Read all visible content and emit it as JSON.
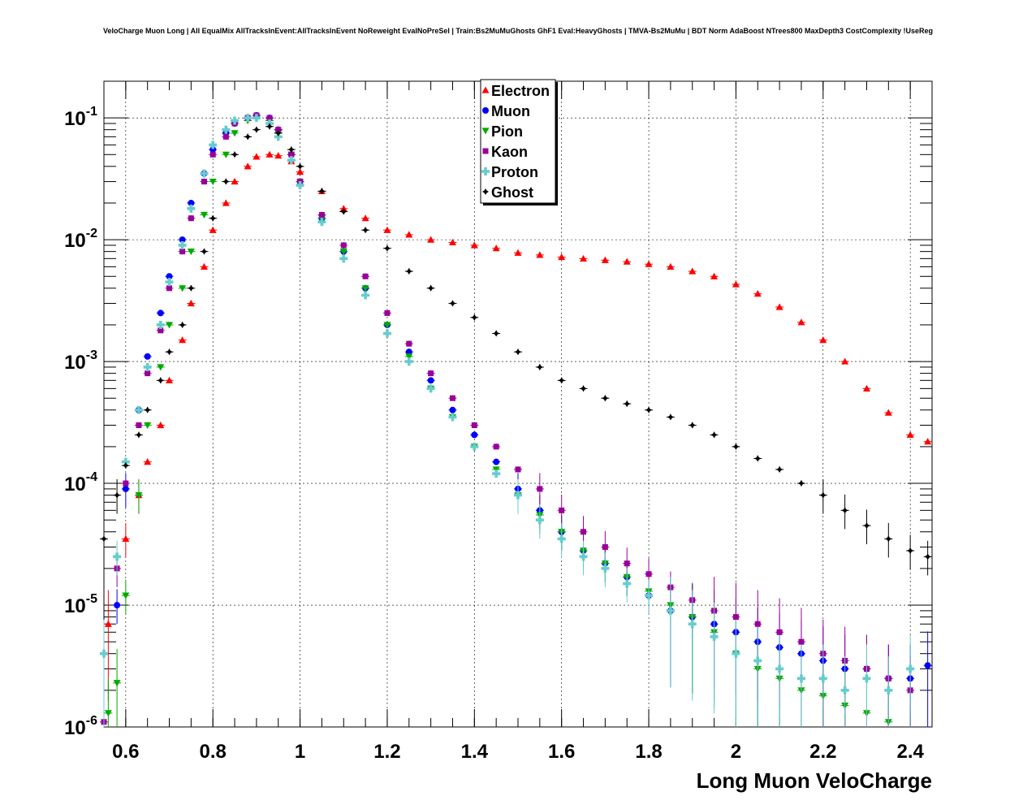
{
  "chart_data": {
    "type": "scatter",
    "title": "VeloCharge Muon Long | All EqualMix AllTracksInEvent:AllTracksInEvent NoReweight EvalNoPreSel | Train:Bs2MuMuGhosts GhF1 Eval:HeavyGhosts | TMVA-Bs2MuMu | BDT Norm AdaBoost NTrees800 MaxDepth3 CostComplexity !UseReg",
    "xlabel": "Long Muon VeloCharge",
    "ylabel": "",
    "xlim": [
      0.55,
      2.45
    ],
    "ylim": [
      1e-06,
      0.2
    ],
    "yscale": "log",
    "grid": true,
    "legend_position": "top-center",
    "x_ticks": [
      "0.6",
      "0.8",
      "1",
      "1.2",
      "1.4",
      "1.6",
      "1.8",
      "2",
      "2.2",
      "2.4"
    ],
    "y_ticks": [
      {
        "base": "10",
        "exp": "-1"
      },
      {
        "base": "10",
        "exp": "-2"
      },
      {
        "base": "10",
        "exp": "-3"
      },
      {
        "base": "10",
        "exp": "-4"
      },
      {
        "base": "10",
        "exp": "-5"
      },
      {
        "base": "10",
        "exp": "-6"
      }
    ],
    "series": [
      {
        "name": "Electron",
        "color": "#ff0000",
        "marker": "triangle-up",
        "x": [
          0.56,
          0.6,
          0.63,
          0.65,
          0.68,
          0.7,
          0.73,
          0.75,
          0.78,
          0.8,
          0.83,
          0.85,
          0.88,
          0.9,
          0.93,
          0.95,
          0.98,
          1.0,
          1.05,
          1.1,
          1.15,
          1.2,
          1.25,
          1.3,
          1.35,
          1.4,
          1.45,
          1.5,
          1.55,
          1.6,
          1.65,
          1.7,
          1.75,
          1.8,
          1.85,
          1.9,
          1.95,
          2.0,
          2.05,
          2.1,
          2.15,
          2.2,
          2.25,
          2.3,
          2.35,
          2.4,
          2.44
        ],
        "y": [
          7e-06,
          3.5e-05,
          8e-05,
          0.00015,
          0.0003,
          0.0007,
          0.0015,
          0.003,
          0.006,
          0.012,
          0.02,
          0.03,
          0.04,
          0.048,
          0.05,
          0.049,
          0.044,
          0.036,
          0.025,
          0.018,
          0.015,
          0.012,
          0.011,
          0.01,
          0.0095,
          0.009,
          0.0085,
          0.0078,
          0.0075,
          0.0072,
          0.007,
          0.0068,
          0.0066,
          0.0063,
          0.006,
          0.0055,
          0.005,
          0.0043,
          0.0036,
          0.0028,
          0.0021,
          0.0015,
          0.001,
          0.0006,
          0.00038,
          0.00025,
          0.00022
        ]
      },
      {
        "name": "Muon",
        "color": "#0000ff",
        "marker": "circle",
        "x": [
          0.58,
          0.6,
          0.63,
          0.65,
          0.68,
          0.7,
          0.73,
          0.75,
          0.78,
          0.8,
          0.83,
          0.85,
          0.88,
          0.9,
          0.93,
          0.95,
          0.98,
          1.0,
          1.05,
          1.1,
          1.15,
          1.2,
          1.25,
          1.3,
          1.35,
          1.4,
          1.45,
          1.5,
          1.55,
          1.6,
          1.65,
          1.7,
          1.75,
          1.8,
          1.85,
          1.9,
          1.95,
          2.0,
          2.05,
          2.1,
          2.15,
          2.2,
          2.25,
          2.3,
          2.35,
          2.4,
          2.44
        ],
        "y": [
          1e-05,
          9e-05,
          0.0004,
          0.0011,
          0.0025,
          0.005,
          0.01,
          0.02,
          0.035,
          0.055,
          0.075,
          0.09,
          0.1,
          0.105,
          0.1,
          0.08,
          0.05,
          0.03,
          0.015,
          0.008,
          0.004,
          0.002,
          0.0012,
          0.0007,
          0.0004,
          0.00025,
          0.00015,
          9e-05,
          6e-05,
          4e-05,
          2.8e-05,
          2.2e-05,
          1.7e-05,
          1.2e-05,
          9e-06,
          8e-06,
          7e-06,
          6e-06,
          5e-06,
          4.5e-06,
          4e-06,
          3.5e-06,
          3e-06,
          3e-06,
          2.5e-06,
          2.5e-06,
          3.2e-06
        ]
      },
      {
        "name": "Pion",
        "color": "#00aa00",
        "marker": "triangle-down",
        "x": [
          0.56,
          0.58,
          0.6,
          0.63,
          0.65,
          0.68,
          0.7,
          0.73,
          0.75,
          0.78,
          0.8,
          0.83,
          0.85,
          0.88,
          0.9,
          0.93,
          0.95,
          0.98,
          1.0,
          1.05,
          1.1,
          1.15,
          1.2,
          1.25,
          1.3,
          1.35,
          1.4,
          1.45,
          1.5,
          1.55,
          1.6,
          1.65,
          1.7,
          1.75,
          1.8,
          1.85,
          1.9,
          1.95,
          2.0,
          2.05,
          2.1,
          2.15,
          2.2,
          2.25,
          2.3,
          2.35
        ],
        "y": [
          1.3e-06,
          2.3e-06,
          1.2e-05,
          8e-05,
          0.0003,
          0.0009,
          0.002,
          0.004,
          0.008,
          0.016,
          0.03,
          0.05,
          0.075,
          0.095,
          0.1,
          0.095,
          0.075,
          0.05,
          0.03,
          0.015,
          0.008,
          0.004,
          0.002,
          0.0011,
          0.0006,
          0.00035,
          0.0002,
          0.00013,
          8e-05,
          5.5e-05,
          4e-05,
          2.8e-05,
          2.2e-05,
          1.7e-05,
          1.3e-05,
          1e-05,
          8e-06,
          6e-06,
          4e-06,
          3e-06,
          2.5e-06,
          2e-06,
          1.8e-06,
          1.5e-06,
          1.3e-06,
          1.1e-06
        ]
      },
      {
        "name": "Kaon",
        "color": "#990099",
        "marker": "square",
        "x": [
          0.55,
          0.58,
          0.6,
          0.63,
          0.65,
          0.68,
          0.7,
          0.73,
          0.75,
          0.78,
          0.8,
          0.83,
          0.85,
          0.88,
          0.9,
          0.93,
          0.95,
          0.98,
          1.0,
          1.05,
          1.1,
          1.15,
          1.2,
          1.25,
          1.3,
          1.35,
          1.4,
          1.45,
          1.5,
          1.55,
          1.6,
          1.65,
          1.7,
          1.75,
          1.8,
          1.85,
          1.9,
          1.95,
          2.0,
          2.05,
          2.1,
          2.15,
          2.2,
          2.25,
          2.3,
          2.35,
          2.4
        ],
        "y": [
          1.1e-06,
          2e-05,
          0.0001,
          0.0003,
          0.0008,
          0.0018,
          0.004,
          0.008,
          0.015,
          0.03,
          0.05,
          0.07,
          0.09,
          0.1,
          0.105,
          0.1,
          0.08,
          0.05,
          0.03,
          0.016,
          0.009,
          0.005,
          0.0025,
          0.0014,
          0.0008,
          0.0005,
          0.0003,
          0.0002,
          0.00013,
          9e-05,
          6e-05,
          4e-05,
          3e-05,
          2.2e-05,
          1.8e-05,
          1.4e-05,
          1.1e-05,
          9e-06,
          8e-06,
          7e-06,
          6e-06,
          5e-06,
          4e-06,
          3.5e-06,
          3e-06,
          2.5e-06,
          2e-06
        ]
      },
      {
        "name": "Proton",
        "color": "#66cccc",
        "marker": "cross",
        "x": [
          0.55,
          0.58,
          0.6,
          0.63,
          0.65,
          0.68,
          0.7,
          0.73,
          0.75,
          0.78,
          0.8,
          0.83,
          0.85,
          0.88,
          0.9,
          0.93,
          0.95,
          0.98,
          1.0,
          1.05,
          1.1,
          1.15,
          1.2,
          1.25,
          1.3,
          1.35,
          1.4,
          1.45,
          1.5,
          1.55,
          1.6,
          1.65,
          1.7,
          1.75,
          1.8,
          1.85,
          1.9,
          1.95,
          2.0,
          2.05,
          2.1,
          2.15,
          2.2,
          2.25,
          2.3,
          2.35,
          2.4
        ],
        "y": [
          4e-06,
          2.5e-05,
          0.00015,
          0.0004,
          0.0009,
          0.002,
          0.0045,
          0.009,
          0.018,
          0.035,
          0.06,
          0.08,
          0.095,
          0.1,
          0.1,
          0.09,
          0.07,
          0.045,
          0.028,
          0.014,
          0.007,
          0.0035,
          0.0017,
          0.001,
          0.0006,
          0.00035,
          0.0002,
          0.00012,
          8e-05,
          5e-05,
          3.5e-05,
          2.5e-05,
          2e-05,
          1.5e-05,
          1.2e-05,
          9e-06,
          7e-06,
          5.5e-06,
          4e-06,
          3.5e-06,
          3e-06,
          2.5e-06,
          2.5e-06,
          2e-06,
          2.5e-06,
          2e-06,
          3e-06
        ]
      },
      {
        "name": "Ghost",
        "color": "#000000",
        "marker": "star",
        "x": [
          0.55,
          0.58,
          0.6,
          0.63,
          0.65,
          0.68,
          0.7,
          0.73,
          0.75,
          0.78,
          0.8,
          0.83,
          0.85,
          0.88,
          0.9,
          0.93,
          0.95,
          0.98,
          1.0,
          1.05,
          1.1,
          1.15,
          1.2,
          1.25,
          1.3,
          1.35,
          1.4,
          1.45,
          1.5,
          1.55,
          1.6,
          1.65,
          1.7,
          1.75,
          1.8,
          1.85,
          1.9,
          1.95,
          2.0,
          2.05,
          2.1,
          2.15,
          2.2,
          2.25,
          2.3,
          2.35,
          2.4,
          2.44
        ],
        "y": [
          3.5e-05,
          8e-05,
          0.00014,
          0.00025,
          0.0004,
          0.0007,
          0.0012,
          0.002,
          0.004,
          0.008,
          0.015,
          0.03,
          0.05,
          0.07,
          0.08,
          0.085,
          0.075,
          0.055,
          0.04,
          0.025,
          0.017,
          0.012,
          0.0085,
          0.0055,
          0.004,
          0.003,
          0.0023,
          0.0017,
          0.0012,
          0.0009,
          0.0007,
          0.0006,
          0.0005,
          0.00045,
          0.0004,
          0.00035,
          0.0003,
          0.00025,
          0.0002,
          0.00016,
          0.00013,
          0.0001,
          8e-05,
          6e-05,
          4.5e-05,
          3.5e-05,
          2.8e-05,
          2.5e-05
        ]
      }
    ]
  }
}
